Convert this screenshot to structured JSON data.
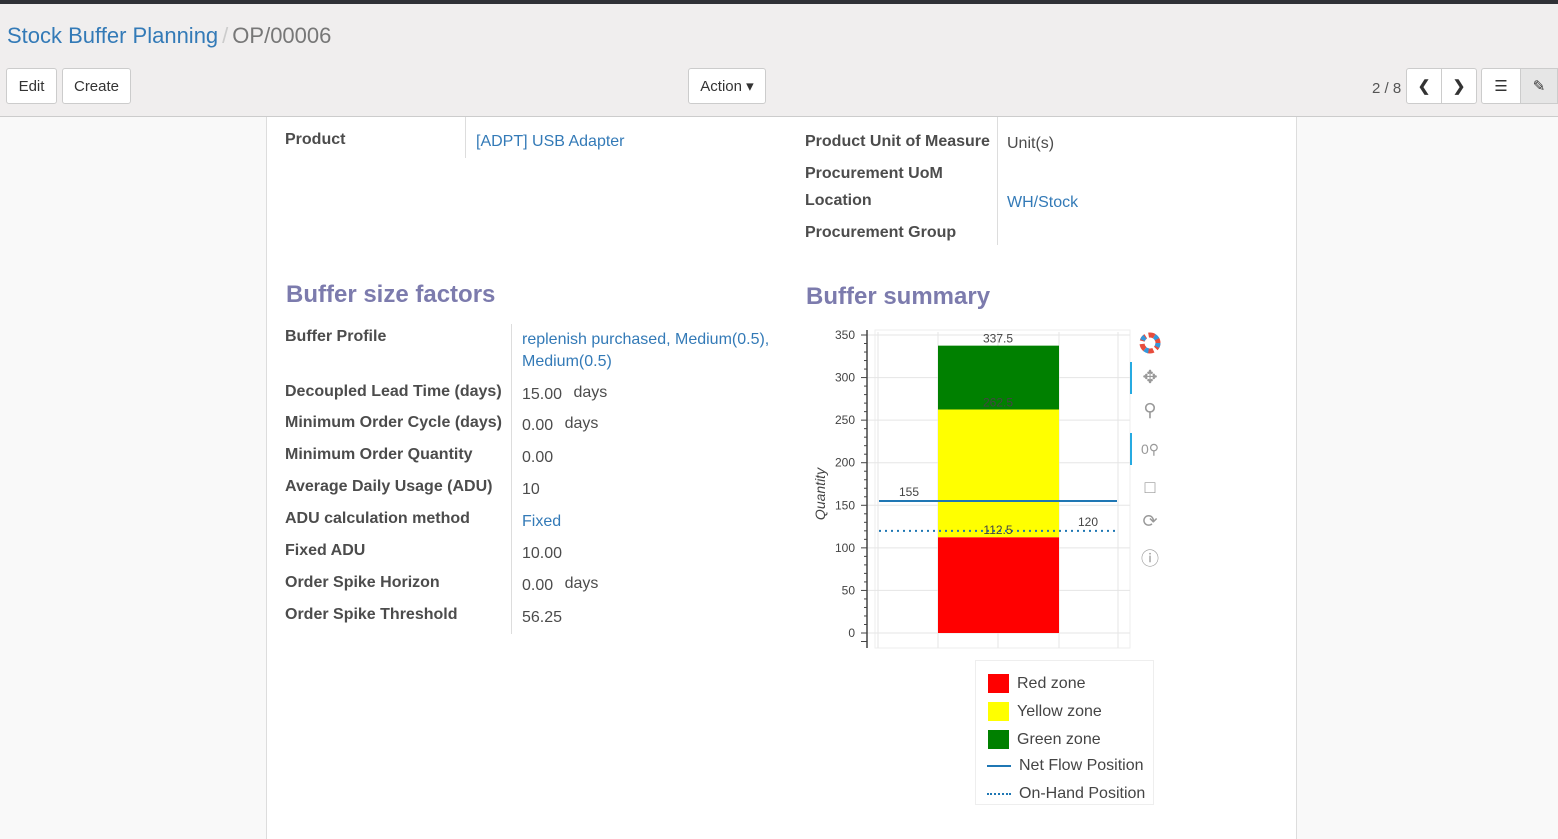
{
  "breadcrumb": {
    "parent": "Stock Buffer Planning",
    "separator": "/",
    "current": "OP/00006"
  },
  "toolbar": {
    "edit": "Edit",
    "create": "Create",
    "action": "Action ▾",
    "pager": "2 / 8"
  },
  "icons": {
    "prev": "chevron-left-icon",
    "next": "chevron-right-icon",
    "list": "list-view-icon",
    "form": "form-view-icon"
  },
  "fields_top": {
    "product_label": "Product",
    "product_value": "[ADPT] USB Adapter",
    "uom_label": "Product Unit of Measure",
    "uom_value": "Unit(s)",
    "proc_uom_label": "Procurement UoM",
    "location_label": "Location",
    "location_value": "WH/Stock",
    "group_label": "Procurement Group"
  },
  "factors": {
    "title": "Buffer size factors",
    "rows": [
      {
        "label": "Buffer Profile",
        "value": "replenish purchased, Medium(0.5),",
        "value2": "Medium(0.5)"
      },
      {
        "label": "Decoupled Lead Time (days)",
        "value": "15.00",
        "unit": "days"
      },
      {
        "label": "Minimum Order Cycle (days)",
        "value": "0.00",
        "unit": "days"
      },
      {
        "label": "Minimum Order Quantity",
        "value": "0.00"
      },
      {
        "label": "Average Daily Usage (ADU)",
        "value": "10"
      },
      {
        "label": "ADU calculation method",
        "value": "Fixed"
      },
      {
        "label": "Fixed ADU",
        "value": "10.00"
      },
      {
        "label": "Order Spike Horizon",
        "value": "0.00",
        "unit": "days"
      },
      {
        "label": "Order Spike Threshold",
        "value": "56.25"
      }
    ]
  },
  "summary": {
    "title": "Buffer summary"
  },
  "chart_data": {
    "type": "bar",
    "ylabel": "Quantity",
    "ylim": [
      0,
      350
    ],
    "yticks": [
      "0",
      "50",
      "100",
      "150",
      "200",
      "250",
      "300",
      "350"
    ],
    "stacked_zones": [
      {
        "name": "Red zone",
        "from": 0,
        "to": 112.5,
        "color": "#ff0000",
        "label": "112.5"
      },
      {
        "name": "Yellow zone",
        "from": 112.5,
        "to": 262.5,
        "color": "#ffff00",
        "label": "262.5"
      },
      {
        "name": "Green zone",
        "from": 262.5,
        "to": 337.5,
        "color": "#008000",
        "label": "337.5"
      }
    ],
    "lines": [
      {
        "name": "Net Flow Position",
        "value": 155,
        "style": "solid",
        "color": "#1f77b4",
        "label": "155"
      },
      {
        "name": "On-Hand Position",
        "value": 120,
        "style": "dotted",
        "color": "#1f77b4",
        "label": "120"
      }
    ],
    "legend": "bottom-right"
  }
}
